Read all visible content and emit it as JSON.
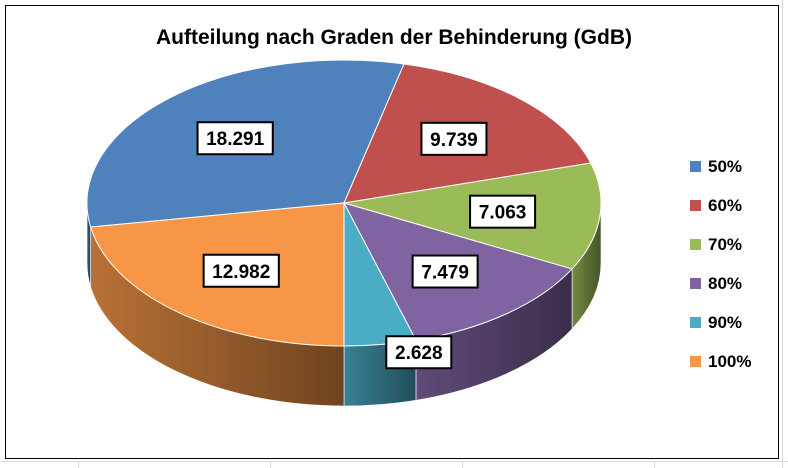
{
  "chart_data": {
    "type": "pie",
    "title": "Aufteilung nach Graden der Behinderung (GdB)",
    "categories": [
      "50%",
      "60%",
      "70%",
      "80%",
      "90%",
      "100%"
    ],
    "values": [
      18291,
      9739,
      7063,
      7479,
      2628,
      12982
    ],
    "data_labels": [
      "18.291",
      "9.739",
      "7.063",
      "7.479",
      "2.628",
      "12.982"
    ],
    "colors": [
      "#4f81bd",
      "#c0504d",
      "#9bbb59",
      "#8064a2",
      "#4bacc6",
      "#f79646"
    ],
    "legend_position": "right",
    "style": "3d-pie"
  }
}
